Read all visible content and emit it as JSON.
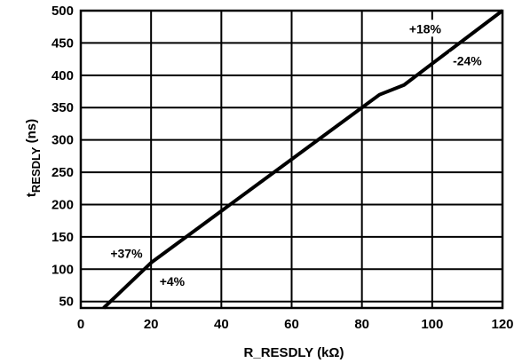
{
  "chart_data": {
    "type": "line",
    "title": "",
    "xlabel": "R_RESDLY (k",
    "xlabel_unit_symbol": "Ω",
    "xlabel_close": ")",
    "ylabel_main": "t",
    "ylabel_sub": "RESDLY",
    "ylabel_suffix": " (ns)",
    "xlim": [
      0,
      120
    ],
    "ylim": [
      40,
      500
    ],
    "x_ticks": [
      0,
      20,
      40,
      60,
      80,
      100,
      120
    ],
    "y_ticks": [
      50,
      100,
      150,
      200,
      250,
      300,
      350,
      400,
      450,
      500
    ],
    "grid": true,
    "series": [
      {
        "x": [
          6.5,
          20,
          40,
          60,
          80,
          85,
          92,
          100,
          110,
          120
        ],
        "y": [
          40,
          110,
          190,
          270,
          350,
          370,
          385,
          418,
          459,
          500
        ]
      }
    ],
    "annotations": [
      {
        "text": "+18%",
        "x": 98,
        "y": 468
      },
      {
        "text": "-24%",
        "x": 110,
        "y": 418
      },
      {
        "text": "+37%",
        "x": 13,
        "y": 120
      },
      {
        "text": "+4%",
        "x": 26,
        "y": 77
      }
    ]
  }
}
